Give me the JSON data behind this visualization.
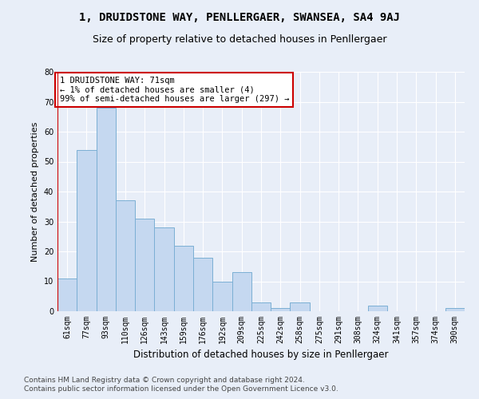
{
  "title": "1, DRUIDSTONE WAY, PENLLERGAER, SWANSEA, SA4 9AJ",
  "subtitle": "Size of property relative to detached houses in Penllergaer",
  "xlabel": "Distribution of detached houses by size in Penllergaer",
  "ylabel": "Number of detached properties",
  "categories": [
    "61sqm",
    "77sqm",
    "93sqm",
    "110sqm",
    "126sqm",
    "143sqm",
    "159sqm",
    "176sqm",
    "192sqm",
    "209sqm",
    "225sqm",
    "242sqm",
    "258sqm",
    "275sqm",
    "291sqm",
    "308sqm",
    "324sqm",
    "341sqm",
    "357sqm",
    "374sqm",
    "390sqm"
  ],
  "values": [
    11,
    54,
    68,
    37,
    31,
    28,
    22,
    18,
    10,
    13,
    3,
    1,
    3,
    0,
    0,
    0,
    2,
    0,
    0,
    0,
    1
  ],
  "bar_color": "#c5d8f0",
  "bar_edge_color": "#7bafd4",
  "highlight_color": "#cc0000",
  "annotation_line1": "1 DRUIDSTONE WAY: 71sqm",
  "annotation_line2": "← 1% of detached houses are smaller (4)",
  "annotation_line3": "99% of semi-detached houses are larger (297) →",
  "annotation_box_color": "#ffffff",
  "annotation_box_edge_color": "#cc0000",
  "ylim": [
    0,
    80
  ],
  "yticks": [
    0,
    10,
    20,
    30,
    40,
    50,
    60,
    70,
    80
  ],
  "footer_line1": "Contains HM Land Registry data © Crown copyright and database right 2024.",
  "footer_line2": "Contains public sector information licensed under the Open Government Licence v3.0.",
  "bg_color": "#e8eef8",
  "plot_bg_color": "#e8eef8",
  "grid_color": "#ffffff",
  "title_fontsize": 10,
  "subtitle_fontsize": 9,
  "xlabel_fontsize": 8.5,
  "ylabel_fontsize": 8,
  "tick_fontsize": 7,
  "footer_fontsize": 6.5,
  "annotation_fontsize": 7.5
}
